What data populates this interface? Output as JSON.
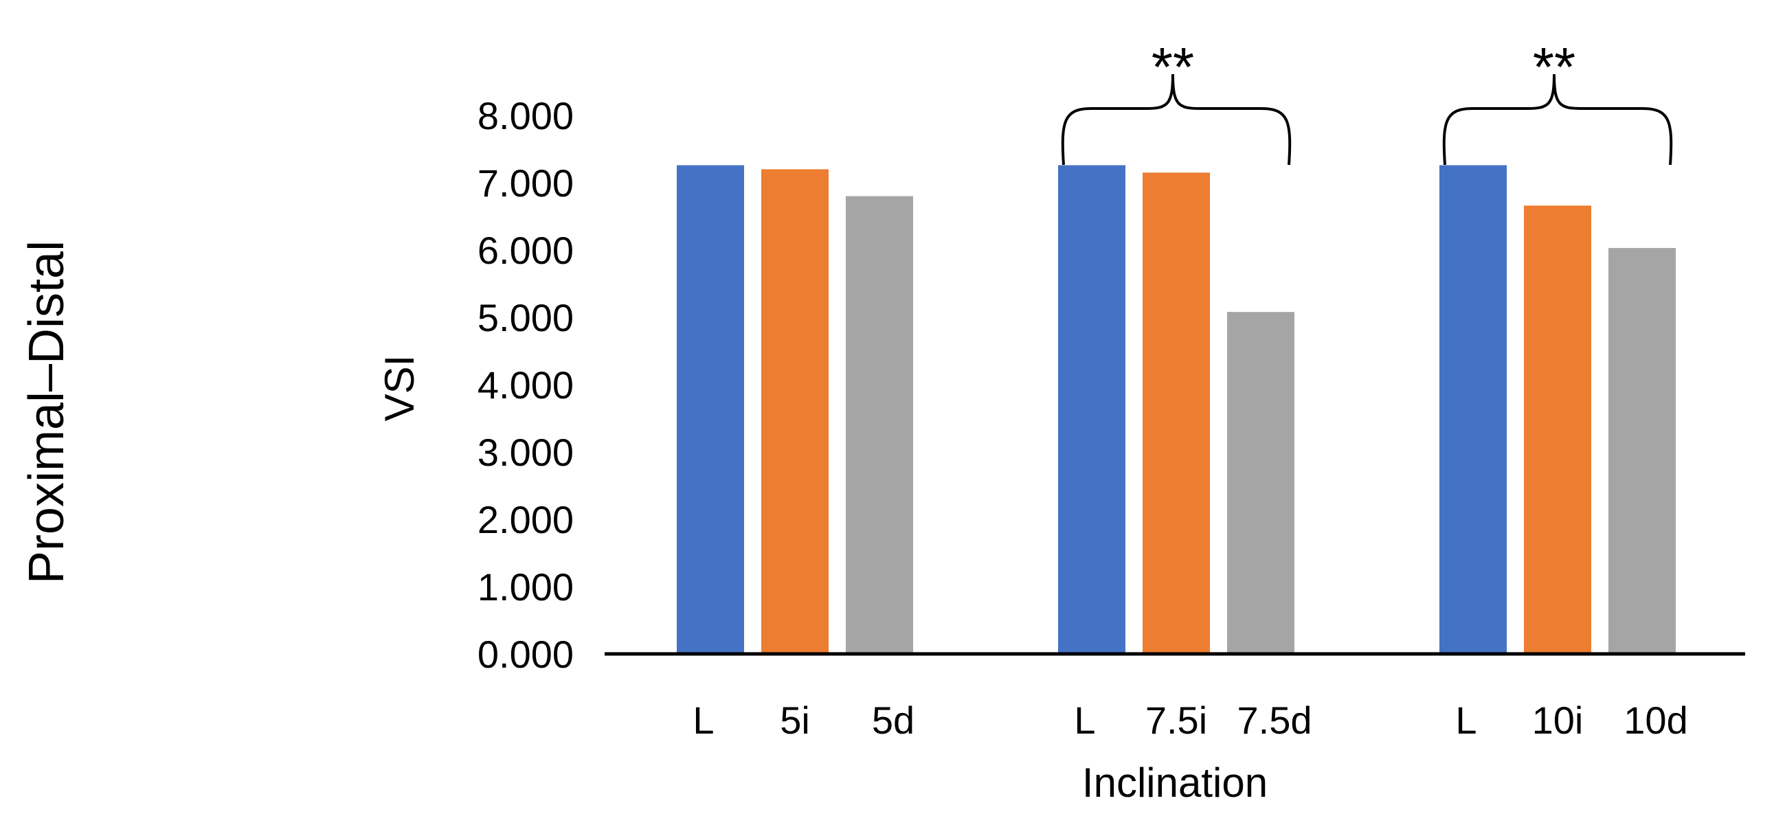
{
  "chart_data": {
    "type": "bar",
    "side_title": "Proximal–Distal",
    "xlabel": "Inclination",
    "ylabel": "VSI",
    "ylim": [
      0,
      8
    ],
    "y_ticks": [
      "0.000",
      "1.000",
      "2.000",
      "3.000",
      "4.000",
      "5.000",
      "6.000",
      "7.000",
      "8.000"
    ],
    "grid": false,
    "legend": "none",
    "groups": [
      {
        "name": "5",
        "bars": [
          {
            "label": "L",
            "value": 7.26,
            "color": "#4472C4"
          },
          {
            "label": "5i",
            "value": 7.2,
            "color": "#ED7D31"
          },
          {
            "label": "5d",
            "value": 6.8,
            "color": "#A5A5A5"
          }
        ]
      },
      {
        "name": "7.5",
        "bars": [
          {
            "label": "L",
            "value": 7.26,
            "color": "#4472C4"
          },
          {
            "label": "7.5i",
            "value": 7.15,
            "color": "#ED7D31"
          },
          {
            "label": "7.5d",
            "value": 5.08,
            "color": "#A5A5A5"
          }
        ],
        "significance": "**"
      },
      {
        "name": "10",
        "bars": [
          {
            "label": "L",
            "value": 7.26,
            "color": "#4472C4"
          },
          {
            "label": "10i",
            "value": 6.66,
            "color": "#ED7D31"
          },
          {
            "label": "10d",
            "value": 6.03,
            "color": "#A5A5A5"
          }
        ],
        "significance": "**"
      }
    ]
  }
}
